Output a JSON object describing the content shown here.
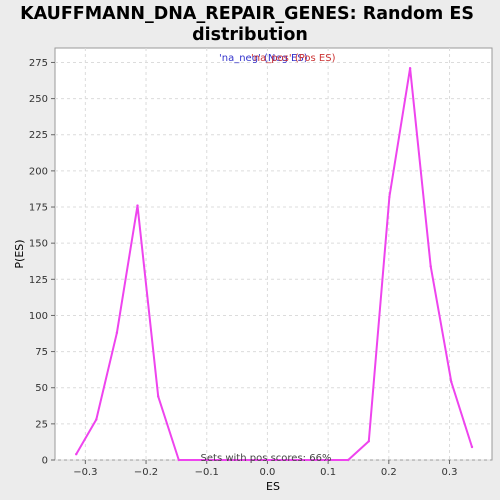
{
  "chart_data": {
    "type": "line",
    "title_lines": [
      "KAUFFMANN_DNA_REPAIR_GENES: Random ES",
      "distribution"
    ],
    "xlabel": "ES",
    "ylabel": "P(ES)",
    "xlim": [
      -0.35,
      0.37
    ],
    "ylim": [
      0,
      285
    ],
    "x_ticks": [
      -0.3,
      -0.2,
      -0.1,
      0.0,
      0.1,
      0.2,
      0.3
    ],
    "x_tick_labels": [
      "−0.3",
      "−0.2",
      "−0.1",
      "0.0",
      "0.1",
      "0.2",
      "0.3"
    ],
    "y_ticks": [
      0,
      25,
      50,
      75,
      100,
      125,
      150,
      175,
      200,
      225,
      250,
      275
    ],
    "y_tick_labels": [
      "0",
      "25",
      "50",
      "75",
      "100",
      "125",
      "150",
      "175",
      "200",
      "225",
      "250",
      "275"
    ],
    "grid": true,
    "legend": [
      {
        "text": "'na_neg' (Neg ES)",
        "color": "#3333cc"
      },
      {
        "text": "'na_pos' (Pos ES)",
        "color": "#cc3333"
      }
    ],
    "legend_placement": "top-center",
    "annotation": "Sets with pos scores: 66%",
    "series": [
      {
        "color": "#ee44ee",
        "x": [
          -0.315,
          -0.282,
          -0.248,
          -0.214,
          -0.18,
          -0.146,
          0.133,
          0.167,
          0.201,
          0.235,
          0.269,
          0.303,
          0.337
        ],
        "y": [
          4,
          28,
          88,
          176,
          44,
          0,
          0,
          13,
          182,
          271,
          134,
          54,
          9
        ]
      }
    ]
  }
}
